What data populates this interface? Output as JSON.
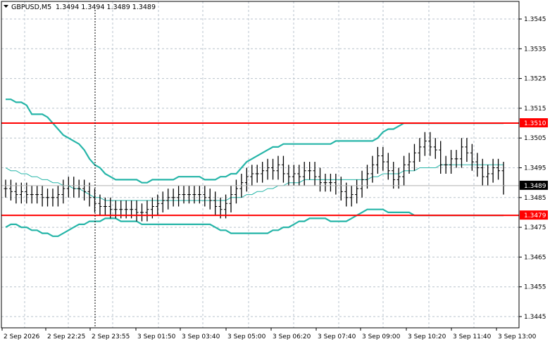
{
  "header": {
    "symbol": "GBPUSD,M5",
    "ohlc": "1.3494 1.3494 1.3489 1.3489"
  },
  "chart_data": {
    "type": "line",
    "title": "GBPUSD,M5",
    "ylim": [
      1.3439,
      1.3559
    ],
    "grid": true,
    "yticks": [
      "1.3545",
      "1.3535",
      "1.3525",
      "1.3515",
      "1.3505",
      "1.3495",
      "1.3485",
      "1.3475",
      "1.3465",
      "1.3455",
      "1.3445"
    ],
    "x_ticks": [
      "2 Sep 2026",
      "2 Sep 22:25",
      "2 Sep 23:55",
      "3 Sep 01:50",
      "3 Sep 03:40",
      "3 Sep 05:00",
      "3 Sep 06:20",
      "3 Sep 07:40",
      "3 Sep 09:00",
      "3 Sep 10:20",
      "3 Sep 11:40",
      "3 Sep 13:00"
    ],
    "levels": [
      {
        "label": "1.3510",
        "value": 1.351,
        "color": "#ff0000"
      },
      {
        "label": "1.3479",
        "value": 1.3479,
        "color": "#ff0000"
      }
    ],
    "current_price": {
      "label": "1.3489",
      "value": 1.3489
    },
    "series": [
      {
        "role": "close",
        "color": "#000000",
        "values": [
          1.3488,
          1.3487,
          1.3486,
          1.3487,
          1.3486,
          1.3486,
          1.3486,
          1.3485,
          1.3485,
          1.3485,
          1.3486,
          1.3488,
          1.3489,
          1.3488,
          1.3488,
          1.3487,
          1.3485,
          1.3483,
          1.3482,
          1.3482,
          1.3481,
          1.3481,
          1.3481,
          1.3481,
          1.3481,
          1.348,
          1.348,
          1.3481,
          1.3482,
          1.3483,
          1.3484,
          1.3485,
          1.3485,
          1.3486,
          1.3486,
          1.3486,
          1.3486,
          1.3486,
          1.3485,
          1.3484,
          1.3482,
          1.3481,
          1.3483,
          1.3486,
          1.3488,
          1.349,
          1.3492,
          1.3493,
          1.3493,
          1.3494,
          1.3495,
          1.3494,
          1.3496,
          1.3493,
          1.3492,
          1.3493,
          1.3492,
          1.3494,
          1.3494,
          1.3492,
          1.349,
          1.349,
          1.349,
          1.3489,
          1.3487,
          1.3485,
          1.3486,
          1.3488,
          1.3491,
          1.3493,
          1.3496,
          1.3499,
          1.3497,
          1.3494,
          1.3491,
          1.3492,
          1.3496,
          1.3497,
          1.35,
          1.3502,
          1.3504,
          1.3502,
          1.3501,
          1.3496,
          1.3496,
          1.3498,
          1.3498,
          1.3502,
          1.35,
          1.3497,
          1.3495,
          1.3492,
          1.3493,
          1.3495,
          1.3494,
          1.3489
        ]
      },
      {
        "role": "bollinger-upper",
        "color": "#26b5a8",
        "values": [
          1.3518,
          1.3518,
          1.3517,
          1.3517,
          1.3516,
          1.3513,
          1.3513,
          1.3513,
          1.3512,
          1.351,
          1.3508,
          1.3506,
          1.3505,
          1.3504,
          1.3503,
          1.3501,
          1.3498,
          1.3496,
          1.3495,
          1.3493,
          1.3492,
          1.3491,
          1.3491,
          1.3491,
          1.3491,
          1.3491,
          1.349,
          1.349,
          1.3491,
          1.3491,
          1.3491,
          1.3491,
          1.3491,
          1.3492,
          1.3492,
          1.3492,
          1.3492,
          1.3492,
          1.3491,
          1.3491,
          1.3491,
          1.3492,
          1.3492,
          1.3493,
          1.3493,
          1.3495,
          1.3497,
          1.3498,
          1.3499,
          1.35,
          1.3501,
          1.3502,
          1.3502,
          1.3503,
          1.3503,
          1.3503,
          1.3503,
          1.3503,
          1.3503,
          1.3503,
          1.3503,
          1.3503,
          1.3503,
          1.3504,
          1.3504,
          1.3504,
          1.3504,
          1.3504,
          1.3504,
          1.3504,
          1.3504,
          1.3505,
          1.3507,
          1.3508,
          1.3508,
          1.3509,
          1.351,
          1.351,
          1.351,
          1.351,
          1.351,
          1.351,
          1.351,
          1.351,
          1.351,
          1.351,
          1.351,
          1.351,
          1.351,
          1.351,
          1.351,
          1.351,
          1.351,
          1.351,
          1.351,
          1.351
        ]
      },
      {
        "role": "bollinger-middle",
        "color": "#26b5a8",
        "values": [
          1.3495,
          1.3494,
          1.3494,
          1.3493,
          1.3493,
          1.3492,
          1.3492,
          1.3491,
          1.3491,
          1.349,
          1.349,
          1.3489,
          1.3489,
          1.3488,
          1.3488,
          1.3487,
          1.3486,
          1.3485,
          1.3485,
          1.3484,
          1.3484,
          1.3484,
          1.3484,
          1.3484,
          1.3484,
          1.3484,
          1.3484,
          1.3484,
          1.3484,
          1.3484,
          1.3484,
          1.3484,
          1.3484,
          1.3484,
          1.3484,
          1.3484,
          1.3484,
          1.3484,
          1.3484,
          1.3484,
          1.3484,
          1.3484,
          1.3484,
          1.3485,
          1.3485,
          1.3485,
          1.3486,
          1.3486,
          1.3487,
          1.3487,
          1.3488,
          1.3488,
          1.3489,
          1.3489,
          1.349,
          1.349,
          1.349,
          1.3491,
          1.3491,
          1.3491,
          1.3491,
          1.3491,
          1.3491,
          1.3491,
          1.3491,
          1.3491,
          1.3491,
          1.3491,
          1.3491,
          1.3491,
          1.3492,
          1.3492,
          1.3493,
          1.3493,
          1.3493,
          1.3493,
          1.3494,
          1.3494,
          1.3494,
          1.3495,
          1.3495,
          1.3495,
          1.3495,
          1.3496,
          1.3496,
          1.3496,
          1.3496,
          1.3496,
          1.3496,
          1.3496,
          1.3496,
          1.3496,
          1.3496,
          1.3496,
          1.3496,
          1.3496
        ]
      },
      {
        "role": "bollinger-lower",
        "color": "#26b5a8",
        "values": [
          1.3475,
          1.3476,
          1.3476,
          1.3475,
          1.3475,
          1.3474,
          1.3474,
          1.3473,
          1.3473,
          1.3472,
          1.3472,
          1.3473,
          1.3474,
          1.3475,
          1.3476,
          1.3476,
          1.3477,
          1.3477,
          1.3477,
          1.3478,
          1.3478,
          1.3478,
          1.3477,
          1.3477,
          1.3477,
          1.3477,
          1.3476,
          1.3476,
          1.3476,
          1.3476,
          1.3476,
          1.3476,
          1.3476,
          1.3476,
          1.3476,
          1.3476,
          1.3476,
          1.3476,
          1.3476,
          1.3476,
          1.3475,
          1.3474,
          1.3474,
          1.3473,
          1.3473,
          1.3473,
          1.3473,
          1.3473,
          1.3473,
          1.3473,
          1.3473,
          1.3474,
          1.3474,
          1.3475,
          1.3475,
          1.3476,
          1.3477,
          1.3477,
          1.3478,
          1.3478,
          1.3478,
          1.3478,
          1.3477,
          1.3477,
          1.3477,
          1.3477,
          1.3478,
          1.3479,
          1.348,
          1.3481,
          1.3481,
          1.3481,
          1.3481,
          1.348,
          1.348,
          1.348,
          1.348,
          1.348,
          1.3479,
          1.3479,
          1.3479,
          1.3479,
          1.3479,
          1.3479,
          1.3479,
          1.3479,
          1.3479,
          1.3479,
          1.3479,
          1.3479,
          1.3479,
          1.3479,
          1.3479,
          1.3479,
          1.3479,
          1.3479
        ]
      }
    ]
  },
  "colors": {
    "grid": "#b9c3cc",
    "axis": "#000000",
    "level_line": "#ff0000",
    "bollinger": "#26b5a8",
    "price_tag_bg": "#000000",
    "price_tag_text": "#ffffff",
    "level_tag_text": "#ffffff"
  }
}
